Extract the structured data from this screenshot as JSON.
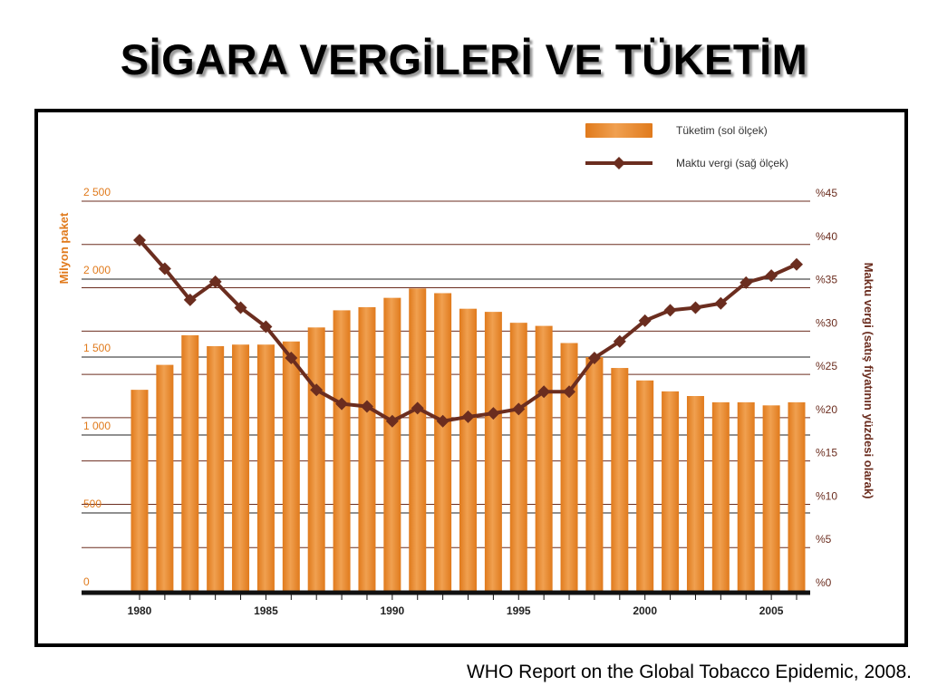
{
  "slide": {
    "title": "SİGARA VERGİLERİ VE TÜKETİM",
    "source": "WHO Report on the Global Tobacco Epidemic, 2008."
  },
  "colors": {
    "bar": "#e07a1c",
    "bar_light": "#f0a050",
    "line": "#6b2d1f",
    "left_axis": "#e07a1c",
    "right_axis": "#6b2d1f"
  },
  "chart_data": {
    "type": "bar",
    "x": [
      1980,
      1981,
      1982,
      1983,
      1984,
      1985,
      1986,
      1987,
      1988,
      1989,
      1990,
      1991,
      1992,
      1993,
      1994,
      1995,
      1996,
      1997,
      1998,
      1999,
      2000,
      2001,
      2002,
      2003,
      2004,
      2005,
      2006
    ],
    "x_tick_labels": [
      "1980",
      "1985",
      "1990",
      "1995",
      "2000",
      "2005"
    ],
    "x_tick_values": [
      1980,
      1985,
      1990,
      1995,
      2000,
      2005
    ],
    "series": [
      {
        "name": "Tüketim (sol ölçek)",
        "type": "bar",
        "axis": "left",
        "values": [
          1290,
          1450,
          1640,
          1570,
          1580,
          1580,
          1600,
          1690,
          1800,
          1820,
          1880,
          1940,
          1910,
          1810,
          1790,
          1720,
          1700,
          1590,
          1500,
          1430,
          1350,
          1280,
          1250,
          1210,
          1210,
          1190,
          1210
        ]
      },
      {
        "name": "Maktu vergi (sağ ölçek)",
        "type": "line",
        "axis": "right",
        "values": [
          40.5,
          37.2,
          33.6,
          35.7,
          32.7,
          30.5,
          26.9,
          23.2,
          21.6,
          21.3,
          19.6,
          21.1,
          19.6,
          20.1,
          20.5,
          21.0,
          23.0,
          23.0,
          26.9,
          28.8,
          31.2,
          32.4,
          32.7,
          33.2,
          35.6,
          36.4,
          37.7
        ]
      }
    ],
    "y_left": {
      "label": "Milyon paket",
      "ylim": [
        0,
        2500
      ],
      "ticks": [
        0,
        500,
        1000,
        1500,
        2000,
        2500
      ],
      "tick_labels": [
        "0",
        "500",
        "1 000",
        "1 500",
        "2 000",
        "2 500"
      ]
    },
    "y_right": {
      "label": "Maktu vergi (satış fiyatının yüzdesi olarak)",
      "ylim": [
        0,
        45
      ],
      "ticks": [
        0,
        5,
        10,
        15,
        20,
        25,
        30,
        35,
        40,
        45
      ],
      "tick_labels": [
        "%0",
        "%5",
        "%10",
        "%15",
        "%20",
        "%25",
        "%30",
        "%35",
        "%40",
        "%45"
      ]
    },
    "legend": "top-right",
    "grid": true
  }
}
